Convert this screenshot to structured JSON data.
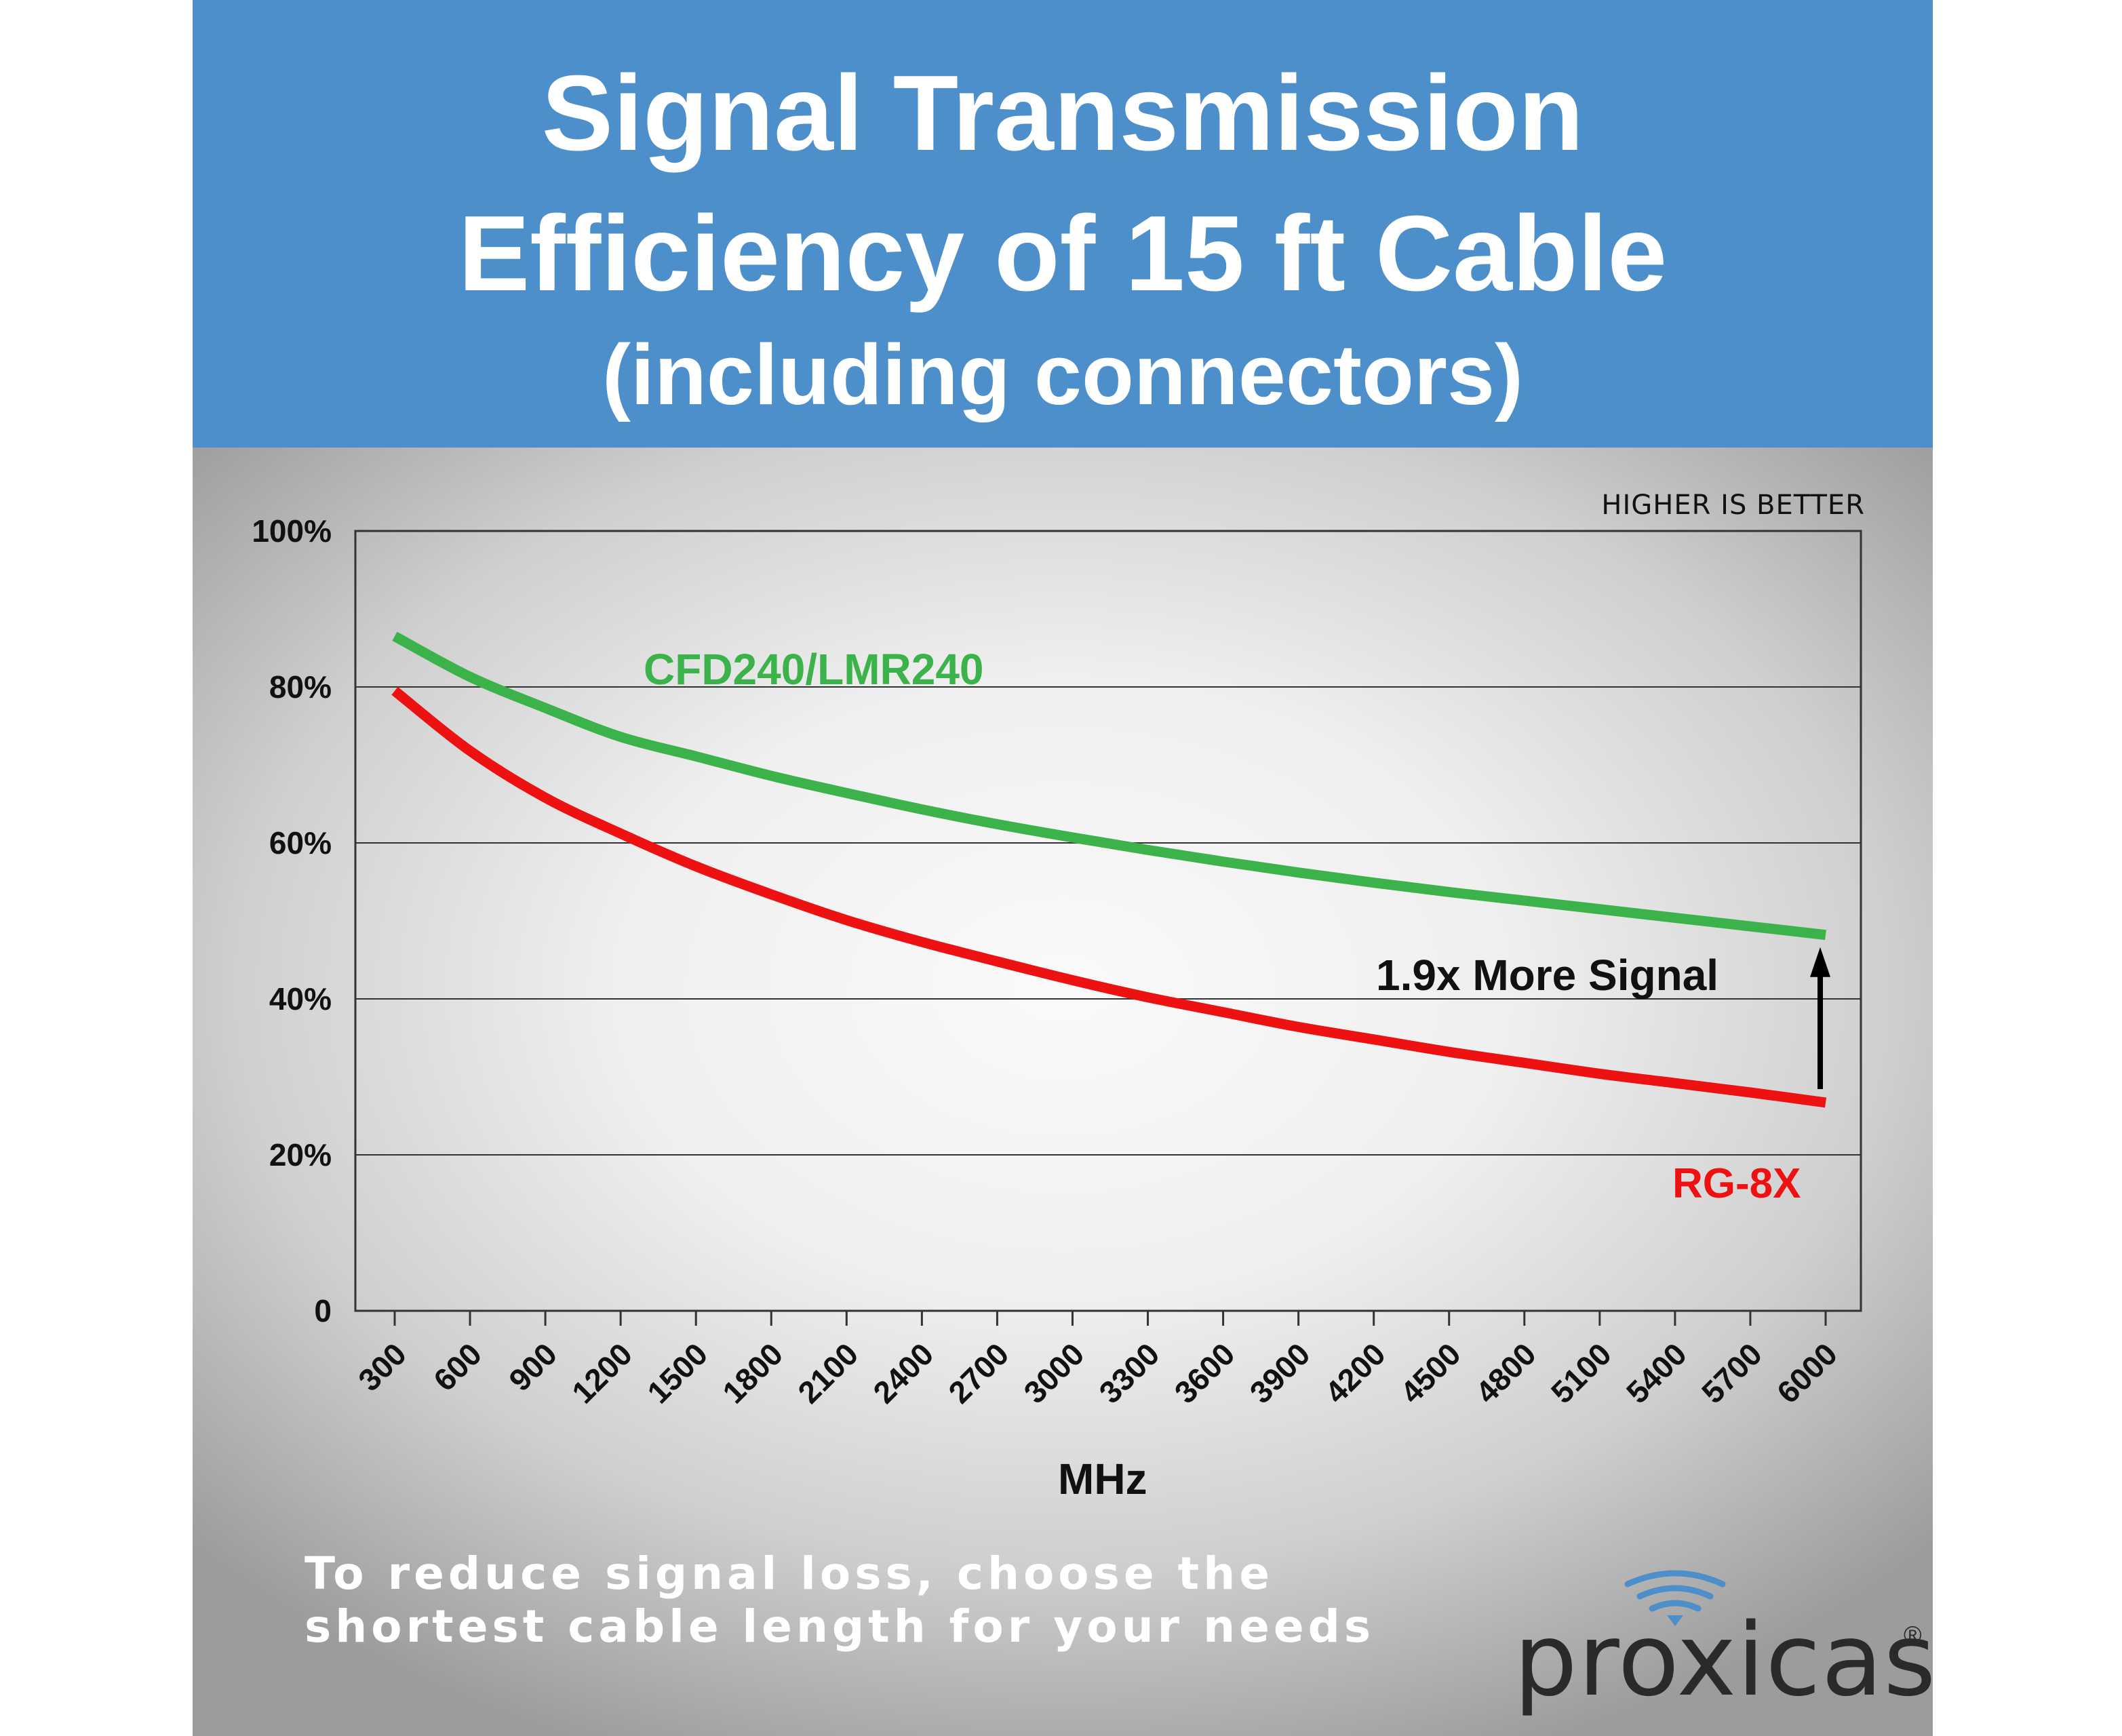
{
  "title": {
    "line1": "Signal Transmission",
    "line2": "Efficiency of 15 ft Cable",
    "line3": "(including connectors)"
  },
  "note": "HIGHER IS BETTER",
  "annotation": "1.9x More Signal",
  "tip": {
    "line1": "To reduce signal loss, choose the",
    "line2": "shortest cable length for your needs"
  },
  "logo": {
    "wordmark": "proxicast",
    "registered": "®"
  },
  "colors": {
    "header": "#4d8fcb",
    "green_series": "#3cb34a",
    "red_series": "#ee1111"
  },
  "chart_data": {
    "type": "line",
    "title": "",
    "xlabel": "MHz",
    "ylabel": "",
    "x": [
      300,
      600,
      900,
      1200,
      1500,
      1800,
      2100,
      2400,
      2700,
      3000,
      3300,
      3600,
      3900,
      4200,
      4500,
      4800,
      5100,
      5400,
      5700,
      6000
    ],
    "x_tick_labels": [
      "300",
      "600",
      "900",
      "1200",
      "1500",
      "1800",
      "2100",
      "2400",
      "2700",
      "3000",
      "3300",
      "3600",
      "3900",
      "4200",
      "4500",
      "4800",
      "5100",
      "5400",
      "5700",
      "6000"
    ],
    "ylim": [
      0,
      100
    ],
    "y_ticks": [
      0,
      20,
      40,
      60,
      80,
      100
    ],
    "y_tick_labels": [
      "0",
      "20%",
      "40%",
      "60%",
      "80%",
      "100%"
    ],
    "grid": true,
    "series": [
      {
        "name": "CFD240/LMR240",
        "color": "#3cb34a",
        "values": [
          86.5,
          81.3,
          77.3,
          73.6,
          71.1,
          68.6,
          66.4,
          64.3,
          62.4,
          60.7,
          59.1,
          57.6,
          56.2,
          54.9,
          53.7,
          52.6,
          51.5,
          50.4,
          49.3,
          48.2
        ]
      },
      {
        "name": "RG-8X",
        "color": "#ee1111",
        "values": [
          79.5,
          71.8,
          65.8,
          61.2,
          57.0,
          53.4,
          50.1,
          47.3,
          44.8,
          42.4,
          40.2,
          38.3,
          36.4,
          34.8,
          33.2,
          31.8,
          30.4,
          29.2,
          28.0,
          26.7
        ]
      }
    ]
  }
}
